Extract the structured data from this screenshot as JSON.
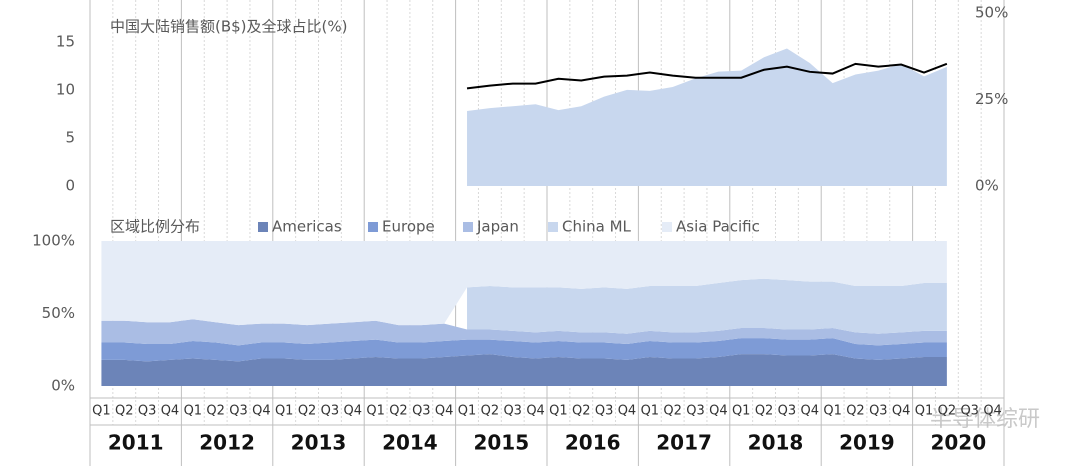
{
  "chart_data": [
    {
      "type": "area_line",
      "title": "中国大陆销售额(B$)及全球占比(%)",
      "ylim": [
        0,
        18
      ],
      "yticks": [
        0,
        5,
        10,
        15
      ],
      "y2lim": [
        0,
        50
      ],
      "y2ticks": [
        {
          "value": 0,
          "label": "0%"
        },
        {
          "value": 25,
          "label": "25%"
        },
        {
          "value": 50,
          "label": "50%"
        }
      ],
      "series": [
        {
          "color": "#c8d7ee",
          "values": [
            null,
            null,
            null,
            null,
            null,
            null,
            null,
            null,
            null,
            null,
            null,
            null,
            null,
            null,
            null,
            null,
            7.8,
            8.1,
            8.3,
            8.5,
            7.9,
            8.3,
            9.3,
            10.0,
            9.9,
            10.3,
            11.2,
            11.9,
            12.0,
            13.4,
            14.3,
            12.8,
            10.7,
            11.6,
            12.0,
            12.7,
            11.4,
            12.4,
            null,
            null
          ]
        },
        {
          "color": "#000000",
          "axis": "y2",
          "values": [
            null,
            null,
            null,
            null,
            null,
            null,
            null,
            null,
            null,
            null,
            null,
            null,
            null,
            null,
            null,
            null,
            28.2,
            29.0,
            29.6,
            29.6,
            31.0,
            30.5,
            31.6,
            31.9,
            32.8,
            31.9,
            31.3,
            31.3,
            31.3,
            33.6,
            34.5,
            33.0,
            32.5,
            35.3,
            34.5,
            35.1,
            32.8,
            35.3,
            null,
            null
          ]
        }
      ]
    },
    {
      "type": "stacked_area",
      "title": "区域比例分布",
      "categories": [
        "Q1",
        "Q2",
        "Q3",
        "Q4",
        "Q1",
        "Q2",
        "Q3",
        "Q4",
        "Q1",
        "Q2",
        "Q3",
        "Q4",
        "Q1",
        "Q2",
        "Q3",
        "Q4",
        "Q1",
        "Q2",
        "Q3",
        "Q4",
        "Q1",
        "Q2",
        "Q3",
        "Q4",
        "Q1",
        "Q2",
        "Q3",
        "Q4",
        "Q1",
        "Q2",
        "Q3",
        "Q4",
        "Q1",
        "Q2",
        "Q3",
        "Q4",
        "Q1",
        "Q2",
        "Q3",
        "Q4"
      ],
      "years": [
        "2011",
        "2012",
        "2013",
        "2014",
        "2015",
        "2016",
        "2017",
        "2018",
        "2019",
        "2020"
      ],
      "ylim": [
        0,
        100
      ],
      "yticks": [
        {
          "value": 0,
          "label": "0%"
        },
        {
          "value": 50,
          "label": "50%"
        },
        {
          "value": 100,
          "label": "100%"
        }
      ],
      "legend": "top",
      "series": [
        {
          "name": "Americas",
          "color": "#6c84b8",
          "values": [
            18,
            18,
            17,
            18,
            19,
            18,
            17,
            19,
            19,
            18,
            18,
            19,
            20,
            19,
            19,
            20,
            21,
            22,
            20,
            19,
            20,
            19,
            19,
            18,
            20,
            19,
            19,
            20,
            22,
            22,
            21,
            21,
            22,
            19,
            18,
            19,
            20,
            20,
            null,
            null
          ]
        },
        {
          "name": "Europe",
          "color": "#7e9bd6",
          "values": [
            12,
            12,
            12,
            11,
            12,
            12,
            11,
            11,
            11,
            11,
            12,
            12,
            12,
            11,
            11,
            11,
            11,
            10,
            11,
            11,
            11,
            11,
            11,
            11,
            11,
            11,
            11,
            11,
            11,
            11,
            11,
            11,
            11,
            10,
            10,
            10,
            10,
            10,
            null,
            null
          ]
        },
        {
          "name": "Japan",
          "color": "#aabde4",
          "values": [
            15,
            15,
            15,
            15,
            15,
            14,
            14,
            13,
            13,
            13,
            13,
            13,
            13,
            12,
            12,
            12,
            7,
            7,
            7,
            7,
            7,
            7,
            7,
            7,
            7,
            7,
            7,
            7,
            7,
            7,
            7,
            7,
            7,
            8,
            8,
            8,
            8,
            8,
            null,
            null
          ]
        },
        {
          "name": "China ML",
          "color": "#c8d7ee",
          "values": [
            null,
            null,
            null,
            null,
            null,
            null,
            null,
            null,
            null,
            null,
            null,
            null,
            null,
            null,
            null,
            null,
            29,
            30,
            30,
            31,
            30,
            30,
            31,
            31,
            31,
            32,
            32,
            33,
            33,
            34,
            34,
            33,
            32,
            32,
            33,
            32,
            33,
            33,
            null,
            null
          ]
        },
        {
          "name": "Asia Pacific",
          "color": "#e5ecf7",
          "values": [
            55,
            55,
            56,
            56,
            54,
            56,
            58,
            57,
            57,
            58,
            57,
            56,
            55,
            58,
            58,
            57,
            32,
            31,
            32,
            32,
            32,
            33,
            32,
            33,
            31,
            31,
            31,
            29,
            27,
            26,
            27,
            28,
            28,
            31,
            31,
            31,
            29,
            29,
            null,
            null
          ]
        }
      ]
    }
  ],
  "watermark": "半导体综研"
}
